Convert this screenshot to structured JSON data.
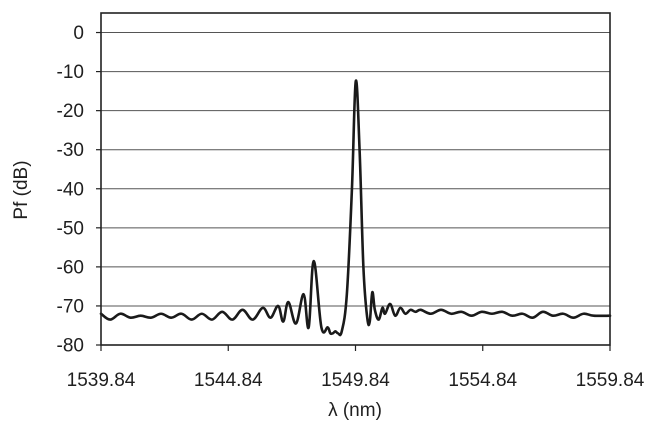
{
  "chart_data": {
    "type": "line",
    "title": "",
    "xlabel": "λ (nm)",
    "ylabel": "Pf (dB)",
    "xlim": [
      1539.84,
      1559.84
    ],
    "ylim": [
      -80,
      5
    ],
    "x_ticks": [
      1539.84,
      1544.84,
      1549.84,
      1554.84,
      1559.84
    ],
    "x_tick_labels": [
      "1539.84",
      "1544.84",
      "1549.84",
      "1554.84",
      "1559.84"
    ],
    "y_ticks": [
      0,
      -10,
      -20,
      -30,
      -40,
      -50,
      -60,
      -70,
      -80
    ],
    "y_tick_labels": [
      "0",
      "-10",
      "-20",
      "-30",
      "-40",
      "-50",
      "-60",
      "-70",
      "-80"
    ],
    "grid": true,
    "legend": false,
    "colors": {
      "line": "#1a1a1a",
      "grid": "#555555",
      "frame": "#222222",
      "background": "#ffffff"
    },
    "series": [
      {
        "x": [
          1539.84,
          1540.2,
          1540.6,
          1541.0,
          1541.4,
          1541.8,
          1542.2,
          1542.6,
          1543.0,
          1543.4,
          1543.8,
          1544.2,
          1544.6,
          1545.0,
          1545.4,
          1545.8,
          1546.2,
          1546.5,
          1546.8,
          1547.0,
          1547.2,
          1547.5,
          1547.8,
          1548.0,
          1548.2,
          1548.5,
          1548.75,
          1548.85,
          1548.95,
          1549.05,
          1549.15,
          1549.3,
          1549.5,
          1549.7,
          1549.85,
          1550.0,
          1550.15,
          1550.3,
          1550.4,
          1550.5,
          1550.6,
          1550.75,
          1550.9,
          1551.0,
          1551.2,
          1551.4,
          1551.6,
          1551.8,
          1552.0,
          1552.2,
          1552.4,
          1552.8,
          1553.2,
          1553.6,
          1554.0,
          1554.4,
          1554.8,
          1555.2,
          1555.6,
          1556.0,
          1556.4,
          1556.8,
          1557.2,
          1557.6,
          1558.0,
          1558.4,
          1558.8,
          1559.2,
          1559.84
        ],
        "values": [
          -72,
          -73.5,
          -72,
          -73,
          -72.5,
          -73,
          -72,
          -73,
          -72,
          -73.5,
          -72,
          -73.5,
          -71.5,
          -73.5,
          -71,
          -73.5,
          -70.5,
          -73,
          -70,
          -74,
          -69,
          -74.5,
          -67,
          -75.5,
          -58.5,
          -75.5,
          -75.5,
          -77,
          -77,
          -76.5,
          -77,
          -76.5,
          -67,
          -40,
          -12.5,
          -30,
          -60,
          -73,
          -74,
          -66.5,
          -71,
          -73.5,
          -70.5,
          -72,
          -69.5,
          -72.5,
          -70.5,
          -72,
          -71,
          -71.5,
          -71,
          -72,
          -71,
          -72,
          -71.5,
          -72.5,
          -71.5,
          -72,
          -71.5,
          -72.5,
          -72,
          -73,
          -71.5,
          -72.5,
          -72,
          -73,
          -72,
          -72.5,
          -72.5
        ]
      }
    ]
  }
}
